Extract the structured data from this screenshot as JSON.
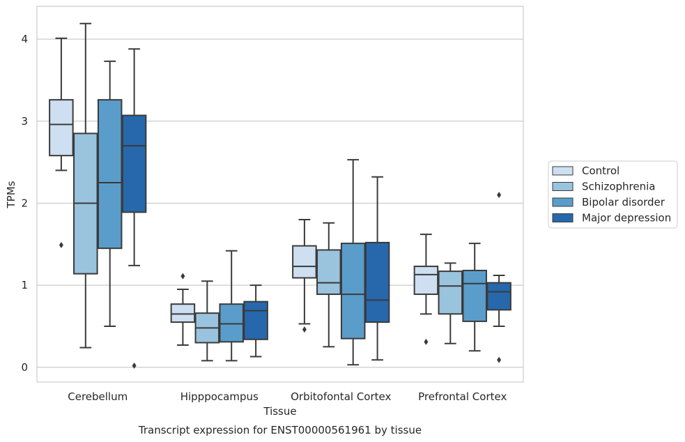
{
  "chart_data": {
    "type": "boxplot",
    "title": "Transcript expression for ENST00000561961 by tissue",
    "xlabel": "Tissue",
    "ylabel": "TPMs",
    "ylim": [
      -0.18,
      4.4
    ],
    "yticks": [
      0,
      1,
      2,
      3,
      4
    ],
    "grid": "horizontal",
    "legend_position": "right",
    "categories": [
      "Cerebellum",
      "Hipppocampus",
      "Orbitofontal Cortex",
      "Prefrontal Cortex"
    ],
    "series": [
      {
        "name": "Control",
        "color": "#cddff0",
        "boxes": [
          {
            "whislo": 2.4,
            "q1": 2.58,
            "med": 2.96,
            "q3": 3.26,
            "whishi": 4.01,
            "fliers": [
              1.49
            ]
          },
          {
            "whislo": 0.27,
            "q1": 0.55,
            "med": 0.65,
            "q3": 0.77,
            "whishi": 0.95,
            "fliers": [
              1.11
            ]
          },
          {
            "whislo": 0.53,
            "q1": 1.09,
            "med": 1.23,
            "q3": 1.48,
            "whishi": 1.8,
            "fliers": [
              0.46
            ]
          },
          {
            "whislo": 0.65,
            "q1": 0.89,
            "med": 1.13,
            "q3": 1.23,
            "whishi": 1.62,
            "fliers": [
              0.31
            ]
          }
        ]
      },
      {
        "name": "Schizophrenia",
        "color": "#9ac3dd",
        "boxes": [
          {
            "whislo": 0.24,
            "q1": 1.14,
            "med": 2.0,
            "q3": 2.85,
            "whishi": 4.19,
            "fliers": []
          },
          {
            "whislo": 0.08,
            "q1": 0.3,
            "med": 0.48,
            "q3": 0.66,
            "whishi": 1.05,
            "fliers": []
          },
          {
            "whislo": 0.25,
            "q1": 0.89,
            "med": 1.03,
            "q3": 1.43,
            "whishi": 1.76,
            "fliers": []
          },
          {
            "whislo": 0.29,
            "q1": 0.65,
            "med": 0.99,
            "q3": 1.17,
            "whishi": 1.27,
            "fliers": []
          }
        ]
      },
      {
        "name": "Bipolar disorder",
        "color": "#5a9dcb",
        "boxes": [
          {
            "whislo": 0.5,
            "q1": 1.45,
            "med": 2.25,
            "q3": 3.26,
            "whishi": 3.73,
            "fliers": []
          },
          {
            "whislo": 0.08,
            "q1": 0.31,
            "med": 0.53,
            "q3": 0.77,
            "whishi": 1.42,
            "fliers": []
          },
          {
            "whislo": 0.03,
            "q1": 0.35,
            "med": 0.89,
            "q3": 1.51,
            "whishi": 2.53,
            "fliers": []
          },
          {
            "whislo": 0.2,
            "q1": 0.56,
            "med": 1.02,
            "q3": 1.18,
            "whishi": 1.51,
            "fliers": []
          }
        ]
      },
      {
        "name": "Major depression",
        "color": "#2768ac",
        "boxes": [
          {
            "whislo": 1.24,
            "q1": 1.89,
            "med": 2.7,
            "q3": 3.07,
            "whishi": 3.88,
            "fliers": [
              0.02
            ]
          },
          {
            "whislo": 0.13,
            "q1": 0.34,
            "med": 0.69,
            "q3": 0.8,
            "whishi": 1.0,
            "fliers": []
          },
          {
            "whislo": 0.09,
            "q1": 0.55,
            "med": 0.82,
            "q3": 1.52,
            "whishi": 2.32,
            "fliers": []
          },
          {
            "whislo": 0.5,
            "q1": 0.7,
            "med": 0.92,
            "q3": 1.03,
            "whishi": 1.12,
            "fliers": [
              0.09,
              2.1
            ]
          }
        ]
      }
    ]
  }
}
